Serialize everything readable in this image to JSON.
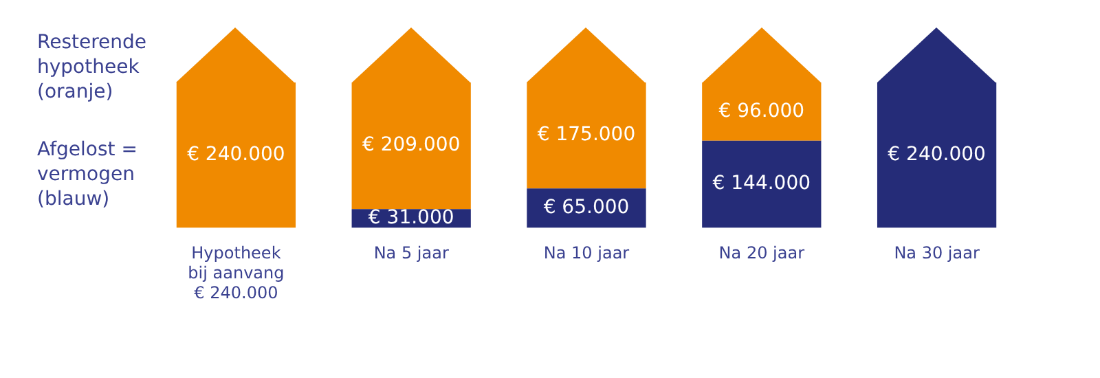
{
  "chart_data": {
    "type": "bar",
    "stacked": true,
    "categories": [
      "Hypotheek\nbij aanvang\n€ 240.000",
      "Na 5 jaar",
      "Na 10 jaar",
      "Na 20 jaar",
      "Na 30 jaar"
    ],
    "series": [
      {
        "color": "#252c78",
        "values": [
          0,
          31000,
          65000,
          144000,
          240000
        ],
        "value_labels": [
          null,
          "€ 31.000",
          "€ 65.000",
          "€ 144.000",
          "€ 240.000"
        ]
      },
      {
        "color": "#f08a00",
        "values": [
          240000,
          209000,
          175000,
          96000,
          0
        ],
        "value_labels": [
          "€ 240.000",
          "€ 209.000",
          "€ 175.000",
          "€ 96.000",
          null
        ]
      }
    ],
    "annotations": [
      "Resterende\nhypotheek\n(oranje)",
      "Afgelost =\nvermogen\n(blauw)"
    ],
    "grid": false,
    "legend": false,
    "tick_labels": "x"
  }
}
